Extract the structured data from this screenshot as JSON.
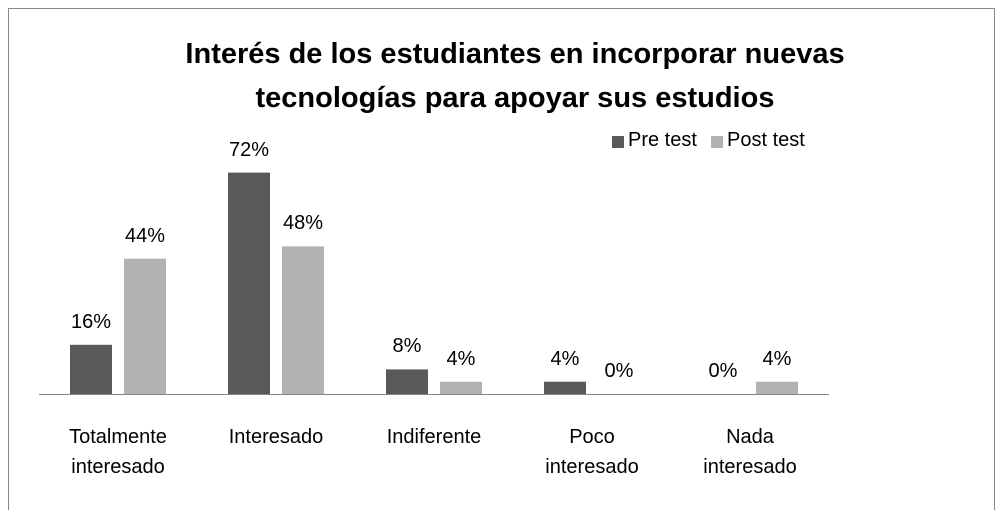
{
  "chart_data": {
    "type": "bar",
    "title": "Interés de los estudiantes en incorporar nuevas tecnologías para apoyar sus estudios",
    "categories": [
      "Totalmente interesado",
      "Interesado",
      "Indiferente",
      "Poco interesado",
      "Nada interesado"
    ],
    "series": [
      {
        "name": "Pre test",
        "color": "#595959",
        "values": [
          16,
          72,
          8,
          4,
          0
        ],
        "value_labels": [
          "16%",
          "72%",
          "8%",
          "4%",
          "0%"
        ]
      },
      {
        "name": "Post test",
        "color": "#b2b2b2",
        "values": [
          44,
          48,
          4,
          0,
          4
        ],
        "value_labels": [
          "44%",
          "48%",
          "4%",
          "0%",
          "4%"
        ]
      }
    ],
    "ylim": [
      0,
      80
    ],
    "legend": "top-right",
    "grid": false
  }
}
